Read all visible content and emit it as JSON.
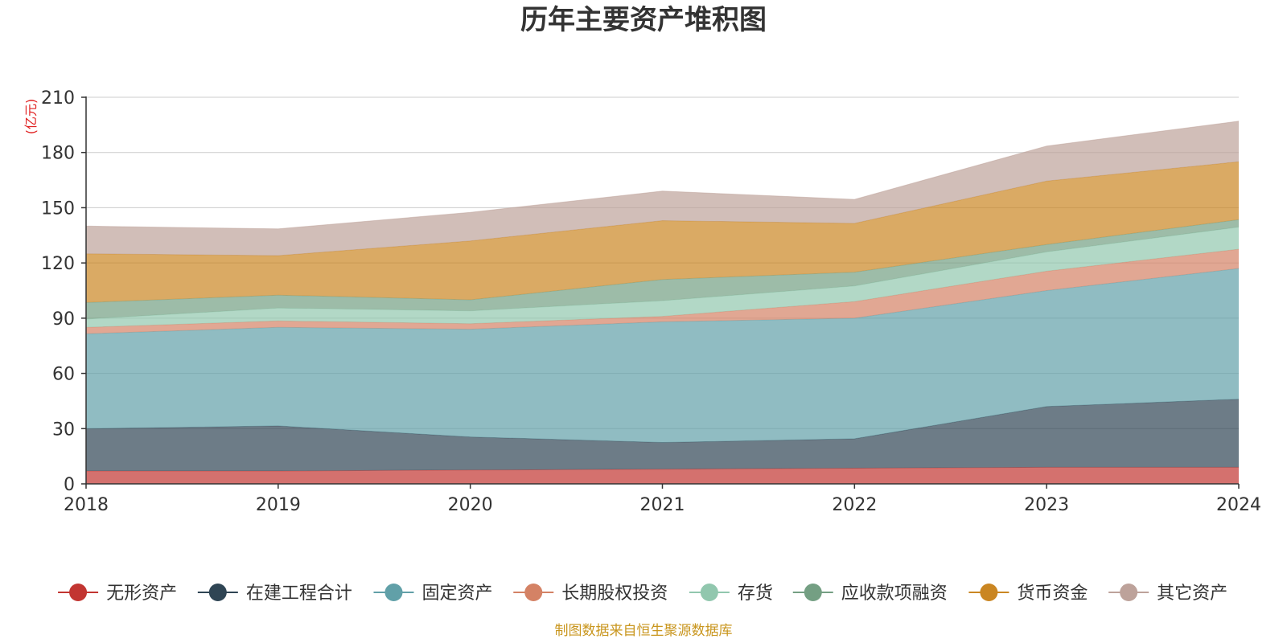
{
  "chart_data": {
    "type": "area",
    "stacked": true,
    "title": "历年主要资产堆积图",
    "y_unit": "(亿元)",
    "source_note": "制图数据来自恒生聚源数据库",
    "categories": [
      "2018",
      "2019",
      "2020",
      "2021",
      "2022",
      "2023",
      "2024"
    ],
    "ylim": [
      0,
      210
    ],
    "yticks": [
      0,
      30,
      60,
      90,
      120,
      150,
      180,
      210
    ],
    "legend_position": "bottom",
    "grid": true,
    "series": [
      {
        "name": "无形资产",
        "color": "#c23531",
        "values": [
          7,
          7,
          7.5,
          8,
          8.5,
          9,
          9
        ]
      },
      {
        "name": "在建工程合计",
        "color": "#2f4554",
        "values": [
          23,
          24.5,
          18,
          14.5,
          16,
          33,
          37
        ]
      },
      {
        "name": "固定资产",
        "color": "#61a0a8",
        "values": [
          51.5,
          53.5,
          58.5,
          65.5,
          65.5,
          63,
          71
        ]
      },
      {
        "name": "长期股权投资",
        "color": "#d48265",
        "values": [
          3.5,
          3.5,
          3,
          3,
          9,
          10.5,
          10.5
        ]
      },
      {
        "name": "存货",
        "color": "#91c7ae",
        "values": [
          4.5,
          7,
          7,
          8.5,
          8.5,
          10.5,
          12
        ]
      },
      {
        "name": "应收款项融资",
        "color": "#749f83",
        "values": [
          9,
          7,
          6,
          11.5,
          7.5,
          4,
          4
        ]
      },
      {
        "name": "货币资金",
        "color": "#ca8622",
        "values": [
          26.5,
          21.5,
          32,
          32,
          26.5,
          34.5,
          31.5
        ]
      },
      {
        "name": "其它资产",
        "color": "#bda29a",
        "values": [
          15,
          14.5,
          15.5,
          16,
          13,
          19,
          22
        ]
      }
    ]
  }
}
